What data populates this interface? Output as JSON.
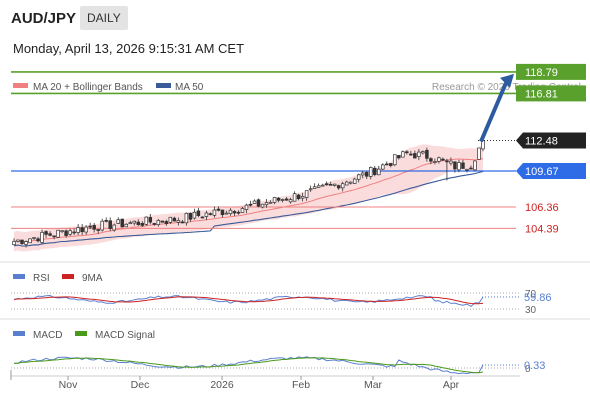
{
  "header": {
    "symbol": "AUD/JPY",
    "timeframe": "DAILY",
    "datetime": "Monday, April 13, 2026 9:15:31 AM CET"
  },
  "credit": "Research © 2026 Trading Central",
  "colors": {
    "bollinger": "#f08080",
    "bollinger_band": "#f9d3d3",
    "ma50": "#3a5a9a",
    "resistance": "#5aa02c",
    "pivot": "#2e6be6",
    "support": "#f08080",
    "arrow": "#2e5aa0",
    "candle_up": "#ffffff",
    "candle_down": "#333333",
    "rsi": "#5a7fd0",
    "rsi_ma": "#cc2222",
    "macd": "#5a7fd0",
    "macd_signal": "#4a9a1a"
  },
  "chart_data": [
    {
      "type": "candlestick",
      "title": "AUD/JPY",
      "legend": [
        "MA 20 + Bollinger Bands",
        "MA 50"
      ],
      "x_ticks": [
        "Nov",
        "Dec",
        "2026",
        "Feb",
        "Mar",
        "Apr"
      ],
      "ylim": [
        101.3,
        119.7
      ],
      "levels": [
        {
          "value": 118.79,
          "label": "118.79",
          "kind": "resistance"
        },
        {
          "value": 116.81,
          "label": "116.81",
          "kind": "resistance"
        },
        {
          "value": 112.48,
          "label": "112.48",
          "kind": "last"
        },
        {
          "value": 109.67,
          "label": "109.67",
          "kind": "pivot"
        },
        {
          "value": 106.36,
          "label": "106.36",
          "kind": "support"
        },
        {
          "value": 104.39,
          "label": "104.39",
          "kind": "support"
        }
      ],
      "close_start": 103.2,
      "close_end": 112.48,
      "target": 118.79
    },
    {
      "type": "line",
      "title": "RSI",
      "series": [
        {
          "name": "RSI"
        },
        {
          "name": "9MA"
        }
      ],
      "y_ticks": [
        "70",
        "30"
      ],
      "ylim": [
        30,
        70
      ],
      "last_value": "59.86"
    },
    {
      "type": "line",
      "title": "MACD",
      "series": [
        {
          "name": "MACD"
        },
        {
          "name": "MACD Signal"
        }
      ],
      "y_ticks": [
        "0"
      ],
      "last_value": "0.33"
    }
  ]
}
